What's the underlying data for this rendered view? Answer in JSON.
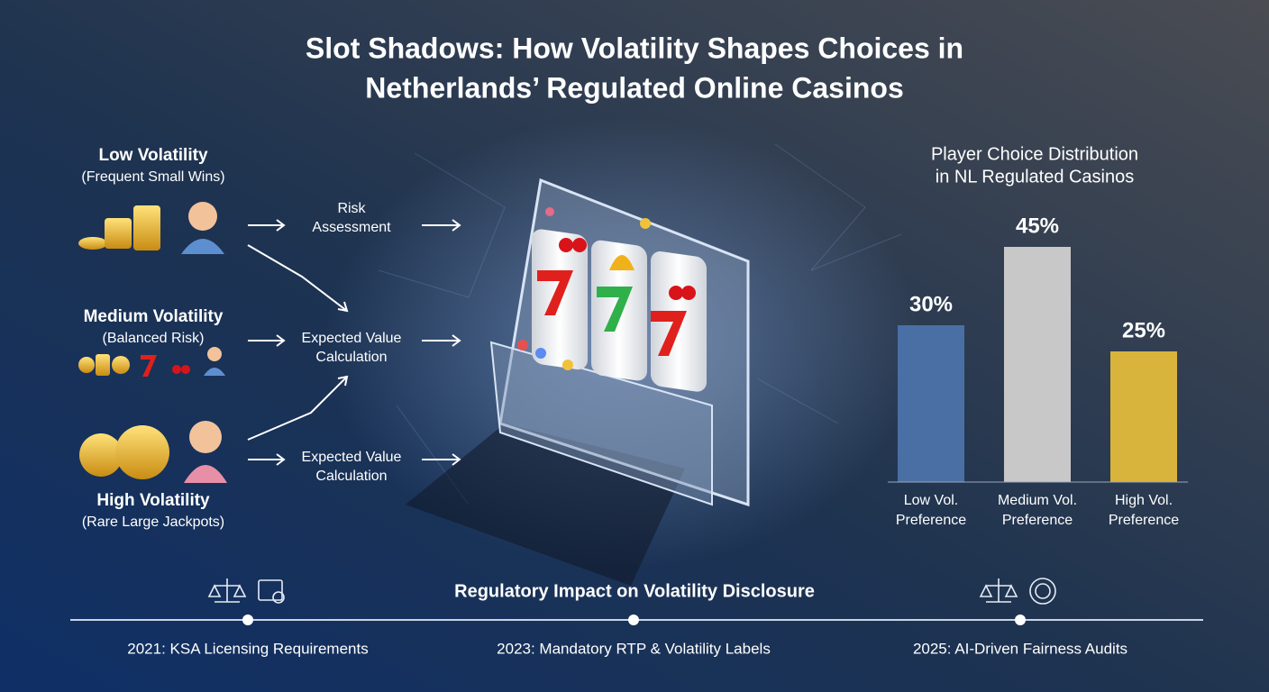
{
  "title": [
    "Slot Shadows: How Volatility Shapes Choices in",
    "Netherlands’ Regulated Online Casinos"
  ],
  "volatility": [
    {
      "heading": "Low Volatility",
      "subtitle": "(Frequent Small Wins)"
    },
    {
      "heading": "Medium Volatility",
      "subtitle": "(Balanced Risk)"
    },
    {
      "heading": "High Volatility",
      "subtitle": "(Rare Large Jackpots)"
    }
  ],
  "flow": [
    [
      "Risk",
      "Assessment"
    ],
    [
      "Expected Value",
      "Calculation"
    ],
    [
      "Expected Value",
      "Calculation"
    ]
  ],
  "chart_data": {
    "type": "bar",
    "title": [
      "Player Choice Distribution",
      "in NL Regulated Casinos"
    ],
    "categories": [
      "Low Vol. Preference",
      "Medium Vol. Preference",
      "High Vol. Preference"
    ],
    "values": [
      30,
      45,
      25
    ],
    "value_labels": [
      "30%",
      "45%",
      "25%"
    ],
    "colors": [
      "#4a6fa5",
      "#c8c8c8",
      "#d9b43c"
    ]
  },
  "timeline": {
    "heading": "Regulatory Impact on Volatility Disclosure",
    "events": [
      "2021: KSA Licensing Requirements",
      "2023: Mandatory RTP & Volatility Labels",
      "2025: AI-Driven Fairness Audits"
    ]
  }
}
